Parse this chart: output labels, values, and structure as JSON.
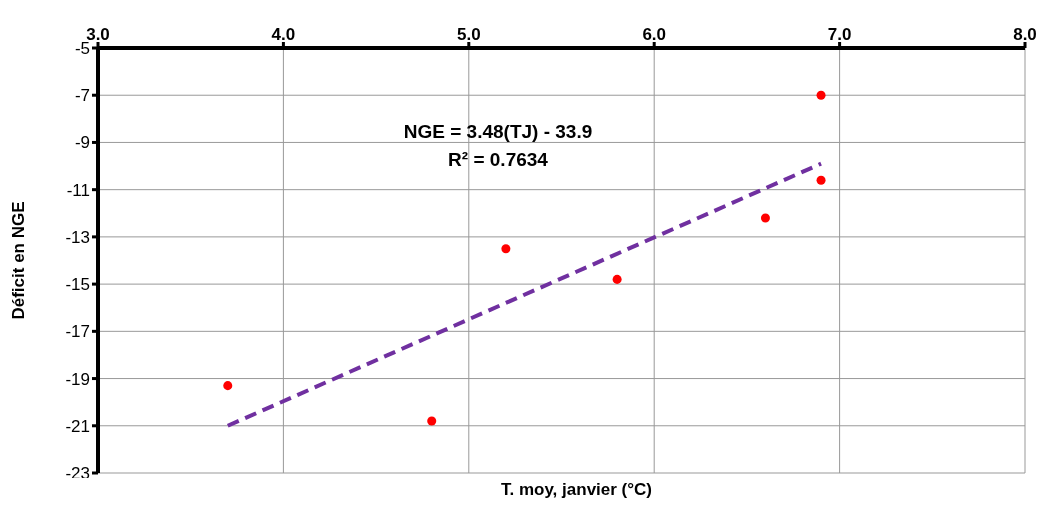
{
  "chart_data": {
    "type": "scatter",
    "xlabel": "T. moy, janvier (°C)",
    "ylabel": "Déficit en NGE",
    "annotations": [
      "NGE = 3.48(TJ) - 33.9",
      "R² = 0.7634"
    ],
    "xlim": [
      3,
      8
    ],
    "xticks": [
      {
        "value": 3,
        "label": "3.0"
      },
      {
        "value": 4,
        "label": "4.0"
      },
      {
        "value": 5,
        "label": "5.0"
      },
      {
        "value": 6,
        "label": "6.0"
      },
      {
        "value": 7,
        "label": "7.0"
      },
      {
        "value": 8,
        "label": "8.0"
      }
    ],
    "ylim": [
      -23,
      -5
    ],
    "yticks": [
      -23,
      -21,
      -19,
      -17,
      -15,
      -13,
      -11,
      -9,
      -7,
      -5
    ],
    "grid": true,
    "series": [
      {
        "marker": "circle",
        "color": "#ff0000",
        "x": [
          3.7,
          4.8,
          5.2,
          5.8,
          6.6,
          6.9,
          6.9
        ],
        "values": [
          -19.3,
          -20.8,
          -13.5,
          -14.8,
          -12.2,
          -7.0,
          -10.6
        ]
      },
      {
        "type": "line",
        "color": "#7030a0",
        "line_style": "dashed",
        "x": [
          3.7,
          6.9
        ],
        "values": [
          -21.0,
          -9.9
        ]
      }
    ]
  }
}
